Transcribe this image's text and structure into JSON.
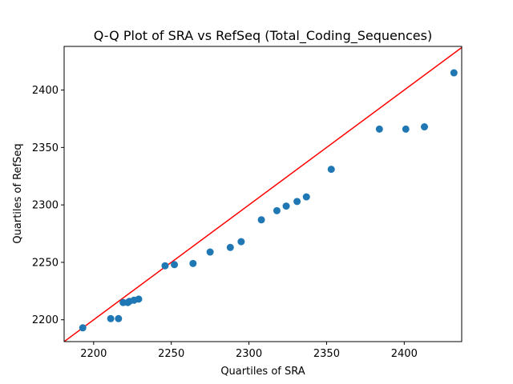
{
  "chart_data": {
    "type": "scatter",
    "title": "Q-Q Plot of SRA vs RefSeq (Total_Coding_Sequences)",
    "xlabel": "Quartiles of SRA",
    "ylabel": "Quartiles of RefSeq",
    "xlim": [
      2181,
      2437
    ],
    "ylim": [
      2181,
      2438
    ],
    "xticks": [
      2200,
      2250,
      2300,
      2350,
      2400
    ],
    "yticks": [
      2200,
      2250,
      2300,
      2350,
      2400
    ],
    "grid": false,
    "points_color": "#1f77b4",
    "reference_line": {
      "color": "#ff0000",
      "slope": 1,
      "intercept": 0
    },
    "x": [
      2193,
      2211,
      2216,
      2219,
      2222,
      2223,
      2226,
      2229,
      2246,
      2252,
      2264,
      2275,
      2288,
      2295,
      2308,
      2318,
      2324,
      2331,
      2337,
      2353,
      2384,
      2401,
      2413,
      2432
    ],
    "y": [
      2193,
      2201,
      2201,
      2215,
      2215,
      2216,
      2217,
      2218,
      2247,
      2248,
      2249,
      2259,
      2263,
      2268,
      2287,
      2295,
      2299,
      2303,
      2307,
      2331,
      2366,
      2366,
      2368,
      2415
    ]
  }
}
